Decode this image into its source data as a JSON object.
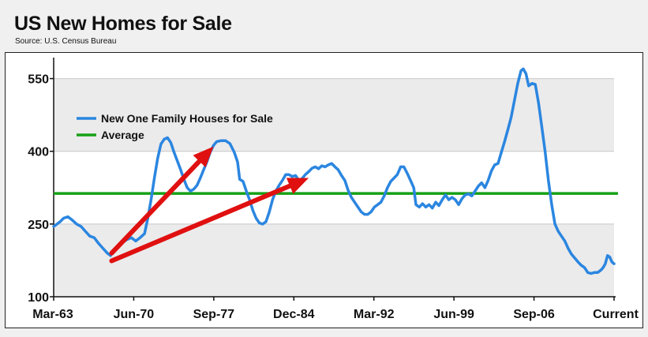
{
  "header": {
    "title": "US New Homes for Sale",
    "subtitle": "Source: U.S. Census Bureau"
  },
  "chart_data": {
    "type": "line",
    "title": "US New Homes for Sale",
    "subtitle": "Source: U.S. Census Bureau",
    "xlabel": "",
    "ylabel": "",
    "x_tick_labels": [
      "Mar-63",
      "Jun-70",
      "Sep-77",
      "Dec-84",
      "Mar-92",
      "Jun-99",
      "Sep-06",
      "Current"
    ],
    "y_ticks": [
      100,
      250,
      400,
      550
    ],
    "ylim": [
      100,
      590
    ],
    "grid": true,
    "legend_position": "top-left",
    "colors": {
      "series": "#2b86e0",
      "average": "#16a016",
      "arrows": "#e01010",
      "band": "#ebebeb"
    },
    "series": [
      {
        "name": "New One Family Houses for Sale",
        "points": [
          [
            1963.2,
            245
          ],
          [
            1963.5,
            250
          ],
          [
            1963.8,
            255
          ],
          [
            1964.1,
            262
          ],
          [
            1964.5,
            265
          ],
          [
            1964.9,
            258
          ],
          [
            1965.3,
            250
          ],
          [
            1965.7,
            245
          ],
          [
            1966.1,
            235
          ],
          [
            1966.5,
            225
          ],
          [
            1966.9,
            222
          ],
          [
            1967.3,
            210
          ],
          [
            1967.7,
            200
          ],
          [
            1968.1,
            190
          ],
          [
            1968.4,
            185
          ],
          [
            1968.7,
            195
          ],
          [
            1969.1,
            205
          ],
          [
            1969.5,
            212
          ],
          [
            1969.9,
            218
          ],
          [
            1970.3,
            222
          ],
          [
            1970.7,
            215
          ],
          [
            1971.1,
            222
          ],
          [
            1971.5,
            230
          ],
          [
            1971.8,
            262
          ],
          [
            1972.1,
            300
          ],
          [
            1972.4,
            345
          ],
          [
            1972.7,
            385
          ],
          [
            1973.0,
            415
          ],
          [
            1973.3,
            425
          ],
          [
            1973.6,
            428
          ],
          [
            1973.9,
            418
          ],
          [
            1974.2,
            398
          ],
          [
            1974.5,
            380
          ],
          [
            1974.8,
            362
          ],
          [
            1975.1,
            342
          ],
          [
            1975.4,
            325
          ],
          [
            1975.7,
            318
          ],
          [
            1976.0,
            322
          ],
          [
            1976.3,
            330
          ],
          [
            1976.6,
            345
          ],
          [
            1976.9,
            362
          ],
          [
            1977.2,
            378
          ],
          [
            1977.5,
            398
          ],
          [
            1977.8,
            412
          ],
          [
            1978.1,
            420
          ],
          [
            1978.5,
            422
          ],
          [
            1978.9,
            422
          ],
          [
            1979.3,
            416
          ],
          [
            1979.7,
            398
          ],
          [
            1980.0,
            378
          ],
          [
            1980.2,
            342
          ],
          [
            1980.5,
            338
          ],
          [
            1980.8,
            318
          ],
          [
            1981.1,
            300
          ],
          [
            1981.4,
            278
          ],
          [
            1981.7,
            262
          ],
          [
            1982.0,
            252
          ],
          [
            1982.3,
            250
          ],
          [
            1982.6,
            255
          ],
          [
            1982.9,
            275
          ],
          [
            1983.2,
            300
          ],
          [
            1983.5,
            318
          ],
          [
            1983.8,
            330
          ],
          [
            1984.1,
            340
          ],
          [
            1984.4,
            352
          ],
          [
            1984.7,
            352
          ],
          [
            1985.0,
            348
          ],
          [
            1985.3,
            350
          ],
          [
            1985.6,
            340
          ],
          [
            1985.9,
            344
          ],
          [
            1986.2,
            352
          ],
          [
            1986.5,
            358
          ],
          [
            1986.8,
            365
          ],
          [
            1987.1,
            368
          ],
          [
            1987.4,
            364
          ],
          [
            1987.7,
            370
          ],
          [
            1988.0,
            368
          ],
          [
            1988.3,
            372
          ],
          [
            1988.6,
            375
          ],
          [
            1988.9,
            368
          ],
          [
            1989.2,
            362
          ],
          [
            1989.5,
            350
          ],
          [
            1989.8,
            340
          ],
          [
            1990.1,
            320
          ],
          [
            1990.4,
            305
          ],
          [
            1990.7,
            295
          ],
          [
            1991.0,
            285
          ],
          [
            1991.3,
            275
          ],
          [
            1991.6,
            270
          ],
          [
            1991.9,
            270
          ],
          [
            1992.2,
            275
          ],
          [
            1992.5,
            285
          ],
          [
            1992.8,
            290
          ],
          [
            1993.1,
            295
          ],
          [
            1993.4,
            308
          ],
          [
            1993.7,
            325
          ],
          [
            1994.0,
            338
          ],
          [
            1994.3,
            345
          ],
          [
            1994.6,
            352
          ],
          [
            1994.9,
            368
          ],
          [
            1995.2,
            368
          ],
          [
            1995.5,
            355
          ],
          [
            1995.8,
            340
          ],
          [
            1996.1,
            325
          ],
          [
            1996.3,
            290
          ],
          [
            1996.6,
            285
          ],
          [
            1996.9,
            292
          ],
          [
            1997.2,
            285
          ],
          [
            1997.5,
            290
          ],
          [
            1997.8,
            283
          ],
          [
            1998.1,
            295
          ],
          [
            1998.4,
            288
          ],
          [
            1998.7,
            300
          ],
          [
            1999.0,
            310
          ],
          [
            1999.3,
            300
          ],
          [
            1999.6,
            305
          ],
          [
            1999.9,
            300
          ],
          [
            2000.2,
            290
          ],
          [
            2000.5,
            302
          ],
          [
            2000.8,
            310
          ],
          [
            2001.1,
            312
          ],
          [
            2001.4,
            308
          ],
          [
            2001.7,
            318
          ],
          [
            2002.0,
            328
          ],
          [
            2002.3,
            335
          ],
          [
            2002.6,
            325
          ],
          [
            2002.9,
            340
          ],
          [
            2003.2,
            360
          ],
          [
            2003.5,
            372
          ],
          [
            2003.8,
            375
          ],
          [
            2004.1,
            398
          ],
          [
            2004.4,
            420
          ],
          [
            2004.7,
            445
          ],
          [
            2005.0,
            470
          ],
          [
            2005.3,
            505
          ],
          [
            2005.6,
            540
          ],
          [
            2005.9,
            566
          ],
          [
            2006.1,
            570
          ],
          [
            2006.35,
            560
          ],
          [
            2006.6,
            535
          ],
          [
            2006.9,
            540
          ],
          [
            2007.2,
            538
          ],
          [
            2007.5,
            500
          ],
          [
            2007.8,
            450
          ],
          [
            2008.1,
            400
          ],
          [
            2008.4,
            340
          ],
          [
            2008.7,
            290
          ],
          [
            2009.0,
            250
          ],
          [
            2009.3,
            235
          ],
          [
            2009.6,
            225
          ],
          [
            2009.9,
            215
          ],
          [
            2010.2,
            200
          ],
          [
            2010.5,
            188
          ],
          [
            2010.8,
            180
          ],
          [
            2011.1,
            172
          ],
          [
            2011.4,
            165
          ],
          [
            2011.7,
            160
          ],
          [
            2012.0,
            150
          ],
          [
            2012.3,
            148
          ],
          [
            2012.6,
            150
          ],
          [
            2012.9,
            150
          ],
          [
            2013.2,
            155
          ],
          [
            2013.4,
            160
          ],
          [
            2013.6,
            168
          ],
          [
            2013.8,
            185
          ],
          [
            2014.0,
            182
          ],
          [
            2014.2,
            172
          ],
          [
            2014.4,
            168
          ]
        ]
      },
      {
        "name": "Average",
        "points": [
          [
            1963.2,
            313
          ],
          [
            2014.4,
            313
          ]
        ]
      }
    ],
    "annotations": [
      {
        "type": "arrow",
        "color": "red",
        "from": [
          1968.5,
          190
        ],
        "to": [
          1977.8,
          410
        ]
      },
      {
        "type": "arrow",
        "color": "red",
        "from": [
          1968.5,
          174
        ],
        "to": [
          1986.5,
          345
        ]
      }
    ]
  }
}
